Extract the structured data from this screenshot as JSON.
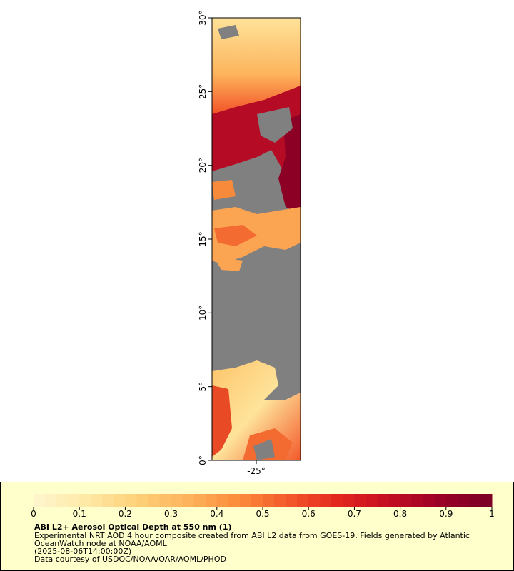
{
  "map": {
    "ylim": [
      0,
      30
    ],
    "yticks": [
      {
        "value": 0,
        "label": "0°"
      },
      {
        "value": 5,
        "label": "5°"
      },
      {
        "value": 10,
        "label": "10°"
      },
      {
        "value": 15,
        "label": "15°"
      },
      {
        "value": 20,
        "label": "20°"
      },
      {
        "value": 25,
        "label": "25°"
      },
      {
        "value": 30,
        "label": "30°"
      }
    ],
    "xlim": [
      -28,
      -22
    ],
    "xticks": [
      {
        "value": -25,
        "label": "-25°"
      }
    ]
  },
  "colorbar": {
    "lim": [
      0,
      1
    ],
    "ticks": [
      0,
      0.1,
      0.2,
      0.3,
      0.4,
      0.5,
      0.6,
      0.7,
      0.8,
      0.9,
      1
    ],
    "colors": [
      "#fff6cf",
      "#fee9a8",
      "#fed27a",
      "#fdb45c",
      "#fc8d3c",
      "#f3592b",
      "#e3251e",
      "#c30d23",
      "#9a0026",
      "#7a0025"
    ]
  },
  "legend": {
    "title": "ABI L2+ Aerosol Optical Depth at 550 nm (1)",
    "lines": [
      "Experimental NRT AOD 4 hour composite created from ABI L2 data from GOES-19. Fields generated by Atlantic",
      "OceanWatch node at NOAA/AOML",
      "(2025-08-06T14:00:00Z)",
      "Data courtesy of USDOC/NOAA/OAR/AOML/PHOD"
    ]
  }
}
